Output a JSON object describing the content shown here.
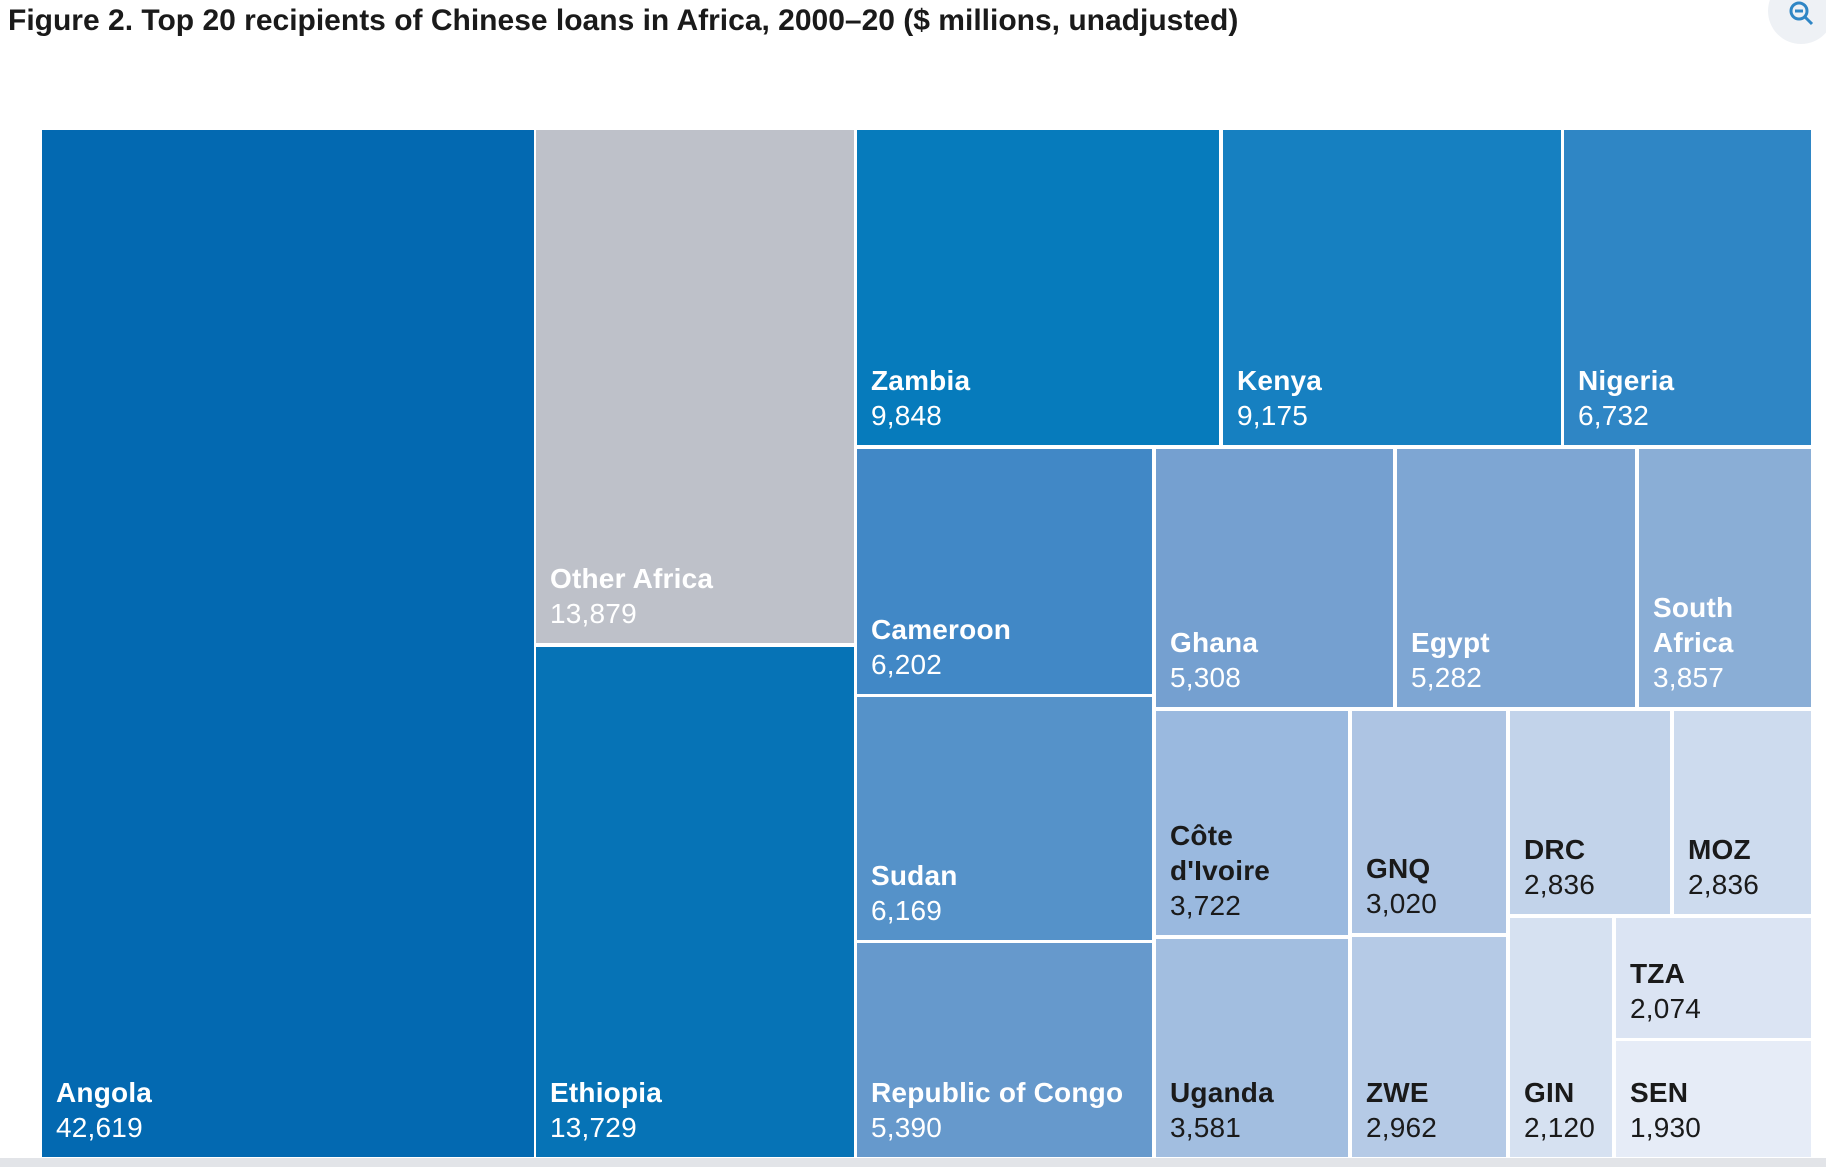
{
  "header": {
    "title": "Figure 2. Top 20 recipients of Chinese loans in Africa, 2000–20 ($ millions, unadjusted)",
    "zoom_icon": "zoom-out-icon"
  },
  "chart_data": {
    "type": "treemap",
    "title": "Figure 2. Top 20 recipients of Chinese loans in Africa, 2000–20 ($ millions, unadjusted)",
    "units": "$ millions, unadjusted",
    "items": [
      {
        "id": "angola",
        "name": "Angola",
        "value": 42619,
        "value_label": "42,619",
        "color": "#0369b1",
        "text_color": "#ffffff"
      },
      {
        "id": "other-africa",
        "name": "Other Africa",
        "value": 13879,
        "value_label": "13,879",
        "color": "#bec1c9",
        "text_color": "#ffffff"
      },
      {
        "id": "ethiopia",
        "name": "Ethiopia",
        "value": 13729,
        "value_label": "13,729",
        "color": "#0673b6",
        "text_color": "#ffffff"
      },
      {
        "id": "zambia",
        "name": "Zambia",
        "value": 9848,
        "value_label": "9,848",
        "color": "#067bbc",
        "text_color": "#ffffff"
      },
      {
        "id": "kenya",
        "name": "Kenya",
        "value": 9175,
        "value_label": "9,175",
        "color": "#1680c1",
        "text_color": "#ffffff"
      },
      {
        "id": "nigeria",
        "name": "Nigeria",
        "value": 6732,
        "value_label": "6,732",
        "color": "#2f86c5",
        "text_color": "#ffffff"
      },
      {
        "id": "cameroon",
        "name": "Cameroon",
        "value": 6202,
        "value_label": "6,202",
        "color": "#4188c6",
        "text_color": "#ffffff"
      },
      {
        "id": "sudan",
        "name": "Sudan",
        "value": 6169,
        "value_label": "6,169",
        "color": "#5592c9",
        "text_color": "#ffffff"
      },
      {
        "id": "republic-of-congo",
        "name": "Republic of Congo",
        "value": 5390,
        "value_label": "5,390",
        "color": "#6699cc",
        "text_color": "#ffffff"
      },
      {
        "id": "ghana",
        "name": "Ghana",
        "value": 5308,
        "value_label": "5,308",
        "color": "#75a0d0",
        "text_color": "#ffffff"
      },
      {
        "id": "egypt",
        "name": "Egypt",
        "value": 5282,
        "value_label": "5,282",
        "color": "#7ea6d3",
        "text_color": "#ffffff"
      },
      {
        "id": "south-africa",
        "name": "South Africa",
        "value": 3857,
        "value_label": "3,857",
        "color": "#8aaed6",
        "text_color": "#ffffff"
      },
      {
        "id": "cote-divoire",
        "name": "Côte d'Ivoire",
        "value": 3722,
        "value_label": "3,722",
        "color": "#9ab9df",
        "text_color": "#1a1a1a"
      },
      {
        "id": "uganda",
        "name": "Uganda",
        "value": 3581,
        "value_label": "3,581",
        "color": "#a2bee0",
        "text_color": "#1a1a1a"
      },
      {
        "id": "gnq",
        "name": "GNQ",
        "value": 3020,
        "value_label": "3,020",
        "color": "#adc4e3",
        "text_color": "#1a1a1a"
      },
      {
        "id": "zwe",
        "name": "ZWE",
        "value": 2962,
        "value_label": "2,962",
        "color": "#b5cae6",
        "text_color": "#1a1a1a"
      },
      {
        "id": "drc",
        "name": "DRC",
        "value": 2836,
        "value_label": "2,836",
        "color": "#c2d3ea",
        "text_color": "#1a1a1a"
      },
      {
        "id": "moz",
        "name": "MOZ",
        "value": 2836,
        "value_label": "2,836",
        "color": "#cddbee",
        "text_color": "#1a1a1a"
      },
      {
        "id": "tza",
        "name": "TZA",
        "value": 2074,
        "value_label": "2,074",
        "color": "#dbe4f3",
        "text_color": "#1a1a1a"
      },
      {
        "id": "gin",
        "name": "GIN",
        "value": 2120,
        "value_label": "2,120",
        "color": "#d6e1f1",
        "text_color": "#1a1a1a"
      },
      {
        "id": "sen",
        "name": "SEN",
        "value": 1930,
        "value_label": "1,930",
        "color": "#e6ecf7",
        "text_color": "#1a1a1a"
      }
    ]
  }
}
